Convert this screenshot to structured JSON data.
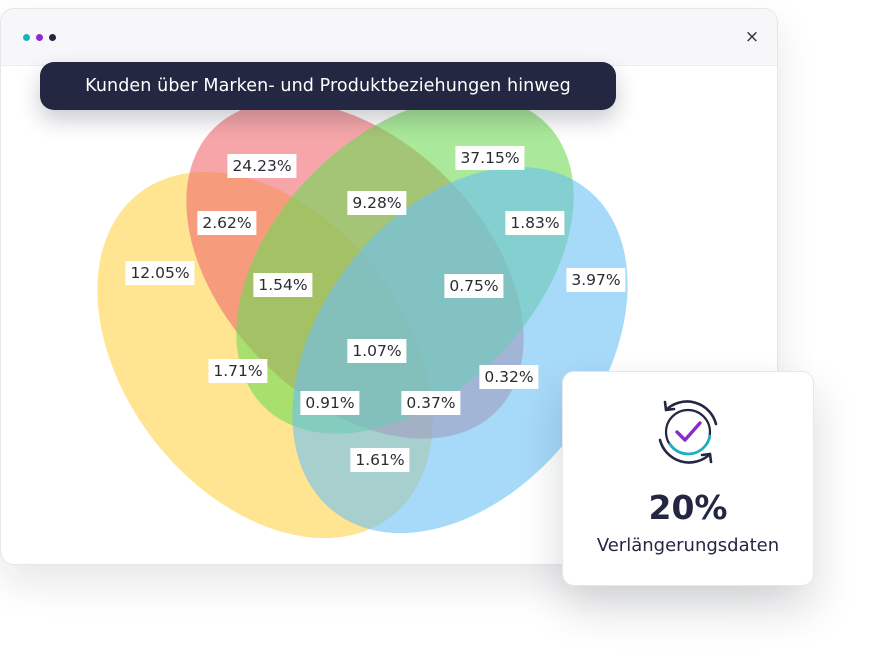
{
  "window": {
    "dots": [
      "#17b3c4",
      "#8a2bd1",
      "#232741"
    ],
    "close_label": "×"
  },
  "diagram_title": "Kunden über Marken- und Produktbeziehungen hinweg",
  "venn": {
    "sets": [
      {
        "id": "yellow",
        "color": "#ffd44a"
      },
      {
        "id": "red",
        "color": "#f06a70"
      },
      {
        "id": "green",
        "color": "#6fdb55"
      },
      {
        "id": "blue",
        "color": "#6cc0f5"
      }
    ],
    "regions": [
      {
        "id": "red-only",
        "label": "24.23%"
      },
      {
        "id": "green-only",
        "label": "37.15%"
      },
      {
        "id": "red-green",
        "label": "9.28%"
      },
      {
        "id": "yellow-red",
        "label": "2.62%"
      },
      {
        "id": "green-blue",
        "label": "1.83%"
      },
      {
        "id": "yellow-only",
        "label": "12.05%"
      },
      {
        "id": "blue-only",
        "label": "3.97%"
      },
      {
        "id": "yellow-red-green",
        "label": "1.54%"
      },
      {
        "id": "red-green-blue",
        "label": "0.75%"
      },
      {
        "id": "all-four",
        "label": "1.07%"
      },
      {
        "id": "yellow-green",
        "label": "1.71%"
      },
      {
        "id": "red-blue",
        "label": "0.32%"
      },
      {
        "id": "yellow-green-blue",
        "label": "0.91%"
      },
      {
        "id": "yellow-red-blue",
        "label": "0.37%"
      },
      {
        "id": "yellow-blue",
        "label": "1.61%"
      }
    ]
  },
  "stat_card": {
    "value": "20%",
    "label": "Verlängerungsdaten",
    "icon": "refresh-check-icon"
  }
}
